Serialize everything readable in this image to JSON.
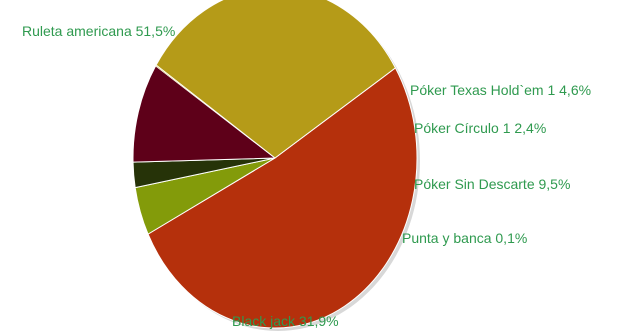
{
  "chart_data": {
    "type": "pie",
    "title": "",
    "slices": [
      {
        "label": "Ruleta americana 51,5%",
        "value": 51.5,
        "color": "#b5300c"
      },
      {
        "label": "Póker Texas Hold`em 1 4,6%",
        "value": 4.6,
        "color": "#839b0a"
      },
      {
        "label": "Póker Círculo 1 2,4%",
        "value": 2.4,
        "color": "#263308"
      },
      {
        "label": "Póker Sin Descarte 9,5%",
        "value": 9.5,
        "color": "#5e0019"
      },
      {
        "label": "Punta y banca 0,1%",
        "value": 0.1,
        "color": "#c6bd2b"
      },
      {
        "label": "Black jack 31,9%",
        "value": 31.9,
        "color": "#b59b18"
      }
    ],
    "label_color": "#2f9a4f",
    "legend": "none"
  }
}
